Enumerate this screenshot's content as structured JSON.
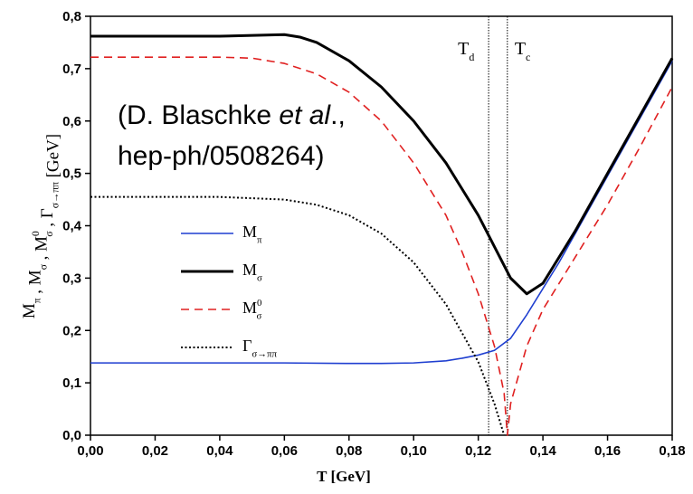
{
  "chart_data": {
    "type": "line",
    "x_label": "T [GeV]",
    "y_label": [
      {
        "text": "M",
        "sub": "π"
      },
      {
        "text": " , "
      },
      {
        "text": "M",
        "sub": "σ"
      },
      {
        "text": " , "
      },
      {
        "text": "M",
        "sup": "0",
        "sub": "σ"
      },
      {
        "text": " , "
      },
      {
        "text": "Γ",
        "sub": "σ→ππ"
      },
      {
        "text": " [GeV]"
      }
    ],
    "citation": {
      "parts": [
        "(D. Blaschke ",
        "et al",
        ".,"
      ],
      "line2": "hep-ph/0508264)"
    },
    "xlim": [
      0,
      0.18
    ],
    "ylim": [
      0,
      0.8
    ],
    "xticks": [
      {
        "value": 0,
        "label": "0,00"
      },
      {
        "value": 0.02,
        "label": "0,02"
      },
      {
        "value": 0.04,
        "label": "0,04"
      },
      {
        "value": 0.06,
        "label": "0,06"
      },
      {
        "value": 0.08,
        "label": "0,08"
      },
      {
        "value": 0.1,
        "label": "0,10"
      },
      {
        "value": 0.12,
        "label": "0,12"
      },
      {
        "value": 0.14,
        "label": "0,14"
      },
      {
        "value": 0.16,
        "label": "0,16"
      },
      {
        "value": 0.18,
        "label": "0,18"
      }
    ],
    "yticks": [
      {
        "value": 0,
        "label": "0,0"
      },
      {
        "value": 0.1,
        "label": "0,1"
      },
      {
        "value": 0.2,
        "label": "0,2"
      },
      {
        "value": 0.3,
        "label": "0,3"
      },
      {
        "value": 0.4,
        "label": "0,4"
      },
      {
        "value": 0.5,
        "label": "0,5"
      },
      {
        "value": 0.6,
        "label": "0,6"
      },
      {
        "value": 0.7,
        "label": "0,7"
      },
      {
        "value": 0.8,
        "label": "0,8"
      }
    ],
    "vlines": [
      {
        "x": 0.1232,
        "text": "T",
        "sub": "d"
      },
      {
        "x": 0.129,
        "text": "T",
        "sub": "c"
      }
    ],
    "legend": "left",
    "series": [
      {
        "name": "M",
        "sub": "π",
        "color": "#1f3fd0",
        "style": "solid",
        "width": 1.6,
        "x": [
          0,
          0.02,
          0.04,
          0.06,
          0.08,
          0.09,
          0.1,
          0.11,
          0.115,
          0.12,
          0.125,
          0.13,
          0.135,
          0.14,
          0.145,
          0.15,
          0.16,
          0.17,
          0.18
        ],
        "values": [
          0.138,
          0.138,
          0.138,
          0.138,
          0.137,
          0.137,
          0.138,
          0.142,
          0.147,
          0.153,
          0.162,
          0.185,
          0.23,
          0.28,
          0.33,
          0.385,
          0.495,
          0.605,
          0.715
        ]
      },
      {
        "name": "M",
        "sub": "σ",
        "color": "#000000",
        "style": "solid",
        "width": 3,
        "x": [
          0,
          0.02,
          0.04,
          0.06,
          0.065,
          0.07,
          0.08,
          0.09,
          0.1,
          0.11,
          0.12,
          0.125,
          0.13,
          0.135,
          0.14,
          0.145,
          0.15,
          0.16,
          0.17,
          0.18
        ],
        "values": [
          0.762,
          0.762,
          0.762,
          0.765,
          0.76,
          0.75,
          0.715,
          0.665,
          0.6,
          0.52,
          0.42,
          0.36,
          0.3,
          0.27,
          0.29,
          0.34,
          0.39,
          0.5,
          0.61,
          0.72
        ]
      },
      {
        "name": "M",
        "sup": "0",
        "sub": "σ",
        "color": "#e02020",
        "style": "dashed",
        "width": 1.6,
        "x": [
          0,
          0.02,
          0.04,
          0.05,
          0.06,
          0.07,
          0.08,
          0.09,
          0.1,
          0.11,
          0.115,
          0.12,
          0.125,
          0.128,
          0.129,
          0.13,
          0.135,
          0.14,
          0.15,
          0.16,
          0.17,
          0.18
        ],
        "values": [
          0.722,
          0.722,
          0.722,
          0.72,
          0.71,
          0.69,
          0.655,
          0.6,
          0.52,
          0.42,
          0.35,
          0.27,
          0.17,
          0.08,
          0,
          0.06,
          0.17,
          0.24,
          0.34,
          0.44,
          0.55,
          0.665
        ]
      },
      {
        "name": "Γ",
        "sub": "σ→ππ",
        "color": "#000000",
        "style": "dotted",
        "width": 2,
        "x": [
          0,
          0.02,
          0.04,
          0.06,
          0.07,
          0.08,
          0.09,
          0.1,
          0.11,
          0.12,
          0.125,
          0.128
        ],
        "values": [
          0.455,
          0.455,
          0.455,
          0.45,
          0.44,
          0.42,
          0.385,
          0.33,
          0.25,
          0.14,
          0.06,
          0
        ]
      }
    ]
  }
}
